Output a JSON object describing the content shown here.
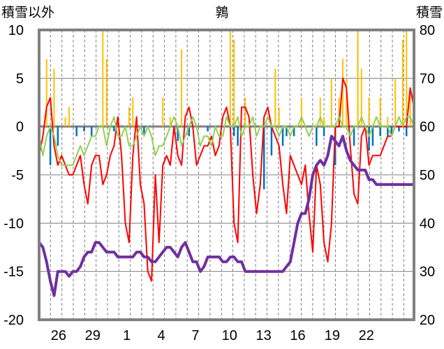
{
  "chart_data": {
    "type": "line",
    "title": "鶉",
    "ylabel": "積雪以外",
    "y2label": "積雪",
    "ylim": [
      -20,
      10
    ],
    "y2lim": [
      20,
      80
    ],
    "yticks": [
      "10",
      "5",
      "0",
      "-5",
      "-10",
      "-15",
      "-20"
    ],
    "y2ticks": [
      "80",
      "70",
      "60",
      "50",
      "40",
      "30",
      "20"
    ],
    "xlim": [
      0,
      100
    ],
    "xticks": [
      {
        "label": "26",
        "x": 5.2
      },
      {
        "label": "29",
        "x": 14.3
      },
      {
        "label": "1",
        "x": 23.4
      },
      {
        "label": "4",
        "x": 32.6
      },
      {
        "label": "7",
        "x": 41.7
      },
      {
        "label": "10",
        "x": 50.8
      },
      {
        "label": "13",
        "x": 59.9
      },
      {
        "label": "16",
        "x": 69.0
      },
      {
        "label": "19",
        "x": 78.2
      },
      {
        "label": "22",
        "x": 87.3
      }
    ],
    "grid_x_step": 3.04,
    "grid_y": [
      -15,
      -10,
      -5,
      5
    ],
    "colors": {
      "temperature": "#ff0000",
      "snow_depth": "#7030a0",
      "precip": "#ffc000",
      "anomaly": "#92d050",
      "bars": "#0070c0",
      "zero": "#808080",
      "frame": "#808080"
    },
    "series": [
      {
        "key": "temperature",
        "axis": "left",
        "x": [
          0,
          1,
          2,
          3,
          4,
          5,
          6,
          7,
          8,
          9,
          10,
          11,
          12,
          13,
          14,
          15,
          16,
          17,
          18,
          19,
          20,
          21,
          22,
          23,
          24,
          25,
          26,
          27,
          28,
          29,
          30,
          31,
          32,
          33,
          34,
          35,
          36,
          37,
          38,
          39,
          40,
          41,
          42,
          43,
          44,
          45,
          46,
          47,
          48,
          49,
          50,
          51,
          52,
          53,
          54,
          55,
          56,
          57,
          58,
          59,
          60,
          61,
          62,
          63,
          64,
          65,
          66,
          67,
          68,
          69,
          70,
          71,
          72,
          73,
          74,
          75,
          76,
          77,
          78,
          79,
          80,
          81,
          82,
          83,
          84,
          85,
          86,
          87,
          88,
          89,
          90,
          91,
          92,
          93,
          94,
          95,
          96,
          97,
          98,
          99,
          100
        ],
        "values": [
          -3,
          -1,
          2,
          3,
          -2,
          -4,
          -3,
          -4,
          -5,
          -5,
          -4,
          -3,
          -6,
          -8,
          -4,
          -3,
          -3,
          -6,
          -5,
          -3,
          -2,
          1,
          -3,
          -10,
          -12,
          -3,
          1,
          -6,
          -8,
          -15,
          -16,
          -5,
          -12,
          -4,
          -3,
          -4,
          0,
          -3,
          -4,
          1,
          2,
          0,
          -4,
          -3,
          -2,
          -2,
          -1,
          -3,
          -2,
          1,
          2,
          0,
          -10,
          -12,
          2,
          2,
          1,
          -5,
          -9,
          -6,
          1,
          2,
          0,
          -1,
          -2,
          -6,
          -9,
          -3,
          -4,
          -5,
          -6,
          -4,
          -9,
          -13,
          -4,
          -6,
          -12,
          -14,
          -10,
          0,
          0,
          5,
          4,
          -2,
          -7,
          -8,
          -1,
          0,
          -4,
          -3,
          -3,
          -3,
          -2,
          -1,
          -1,
          0,
          0,
          0,
          0,
          4,
          2
        ],
        "name": ""
      },
      {
        "key": "anomaly",
        "axis": "left",
        "x": [
          0,
          1,
          2,
          3,
          4,
          5,
          6,
          7,
          8,
          9,
          10,
          11,
          12,
          13,
          14,
          15,
          16,
          17,
          18,
          19,
          20,
          21,
          22,
          23,
          24,
          25,
          26,
          27,
          28,
          29,
          30,
          31,
          32,
          33,
          34,
          35,
          36,
          37,
          38,
          39,
          40,
          41,
          42,
          43,
          44,
          45,
          46,
          47,
          48,
          49,
          50,
          51,
          52,
          53,
          54,
          55,
          56,
          57,
          58,
          59,
          60,
          61,
          62,
          63,
          64,
          65,
          66,
          67,
          68,
          69,
          70,
          71,
          72,
          73,
          74,
          75,
          76,
          77,
          78,
          79,
          80,
          81,
          82,
          83,
          84,
          85,
          86,
          87,
          88,
          89,
          90,
          91,
          92,
          93,
          94,
          95,
          96,
          97,
          98,
          99,
          100
        ],
        "values": [
          -1,
          -3,
          -1,
          0,
          -1,
          -3,
          -4,
          -4,
          -4,
          -4,
          -3,
          -2,
          -3,
          -2,
          -1,
          -1,
          0,
          0,
          -2,
          0,
          1,
          -1,
          -1,
          0,
          -2,
          -2,
          -1,
          0,
          -1,
          0,
          -1,
          -3,
          -2,
          -2,
          -1,
          0,
          1,
          0,
          -2,
          -1,
          0,
          1,
          0,
          -2,
          -1,
          -1,
          -2,
          0,
          -1,
          -1,
          1,
          0,
          0,
          1,
          -1,
          0,
          0,
          1,
          -1,
          0,
          0,
          1,
          0,
          0,
          -1,
          0,
          0,
          -1,
          0,
          0,
          1,
          0,
          -1,
          0,
          0,
          1,
          0,
          0,
          0,
          0,
          1,
          0,
          0,
          -1,
          0,
          0,
          1,
          0,
          -1,
          0,
          1,
          0,
          0,
          0,
          -1,
          0,
          1,
          0,
          1,
          1,
          0
        ],
        "name": ""
      },
      {
        "key": "snow_depth",
        "axis": "right",
        "x": [
          0,
          1,
          2,
          3,
          4,
          5,
          6,
          7,
          8,
          9,
          10,
          11,
          12,
          13,
          14,
          15,
          16,
          17,
          18,
          19,
          20,
          21,
          22,
          23,
          24,
          25,
          26,
          27,
          28,
          29,
          30,
          31,
          32,
          33,
          34,
          35,
          36,
          37,
          38,
          39,
          40,
          41,
          42,
          43,
          44,
          45,
          46,
          47,
          48,
          49,
          50,
          51,
          52,
          53,
          54,
          55,
          56,
          57,
          58,
          59,
          60,
          61,
          62,
          63,
          64,
          65,
          66,
          67,
          68,
          69,
          70,
          71,
          72,
          73,
          74,
          75,
          76,
          77,
          78,
          79,
          80,
          81,
          82,
          83,
          84,
          85,
          86,
          87,
          88,
          89,
          90,
          91,
          92,
          93,
          94,
          95,
          96,
          97,
          98,
          99,
          100
        ],
        "values": [
          36,
          35,
          32,
          28,
          25,
          30,
          30,
          30,
          29,
          30,
          30,
          31,
          33,
          34,
          34,
          36,
          36,
          35,
          34,
          34,
          34,
          33,
          33,
          33,
          33,
          33,
          34,
          34,
          33,
          33,
          32,
          32,
          33,
          34,
          35,
          35,
          34,
          33,
          35,
          36,
          34,
          32,
          32,
          30,
          31,
          33,
          33,
          33,
          33,
          32,
          32,
          33,
          33,
          32,
          32,
          30,
          30,
          30,
          30,
          30,
          30,
          30,
          30,
          30,
          30,
          30,
          31,
          32,
          36,
          40,
          42,
          42,
          45,
          50,
          52,
          53,
          52,
          54,
          58,
          57,
          56,
          58,
          55,
          53,
          52,
          51,
          51,
          51,
          49,
          49,
          48,
          48,
          48,
          48,
          48,
          48,
          48,
          48,
          48,
          48,
          48
        ],
        "name": ""
      },
      {
        "key": "precip",
        "axis": "left",
        "type": "spikes",
        "x": [
          2,
          4,
          7,
          8,
          17,
          18,
          24,
          25,
          33,
          35,
          38,
          51,
          52,
          55,
          63,
          64,
          70,
          75,
          76,
          78,
          80,
          81,
          82,
          85,
          86,
          88,
          91,
          93,
          95,
          97,
          98,
          99
        ],
        "values": [
          7,
          6,
          1,
          2,
          10,
          7,
          2,
          3,
          3,
          1,
          8,
          10,
          9,
          3,
          6,
          2,
          3,
          3,
          1,
          5,
          3,
          7,
          5,
          10,
          6,
          3,
          3,
          1,
          5,
          9,
          10,
          4
        ],
        "name": ""
      },
      {
        "key": "bars",
        "axis": "left",
        "type": "bars",
        "x": [
          3,
          5,
          10,
          12,
          14,
          20,
          28,
          37,
          40,
          45,
          52,
          53,
          60,
          62,
          65,
          66,
          68,
          74,
          76,
          79,
          84,
          88,
          89,
          91,
          93,
          94,
          96,
          98
        ],
        "values": [
          -4,
          -2,
          -1,
          -0.5,
          -1,
          -0.5,
          -1,
          -1.5,
          -1,
          -0.5,
          -1,
          -2,
          -6.5,
          -3,
          -2,
          -1,
          -1,
          -2,
          -1,
          -4,
          -2,
          -2.5,
          -2,
          -1,
          -1,
          -1,
          -0.5,
          -1
        ],
        "name": ""
      }
    ]
  }
}
